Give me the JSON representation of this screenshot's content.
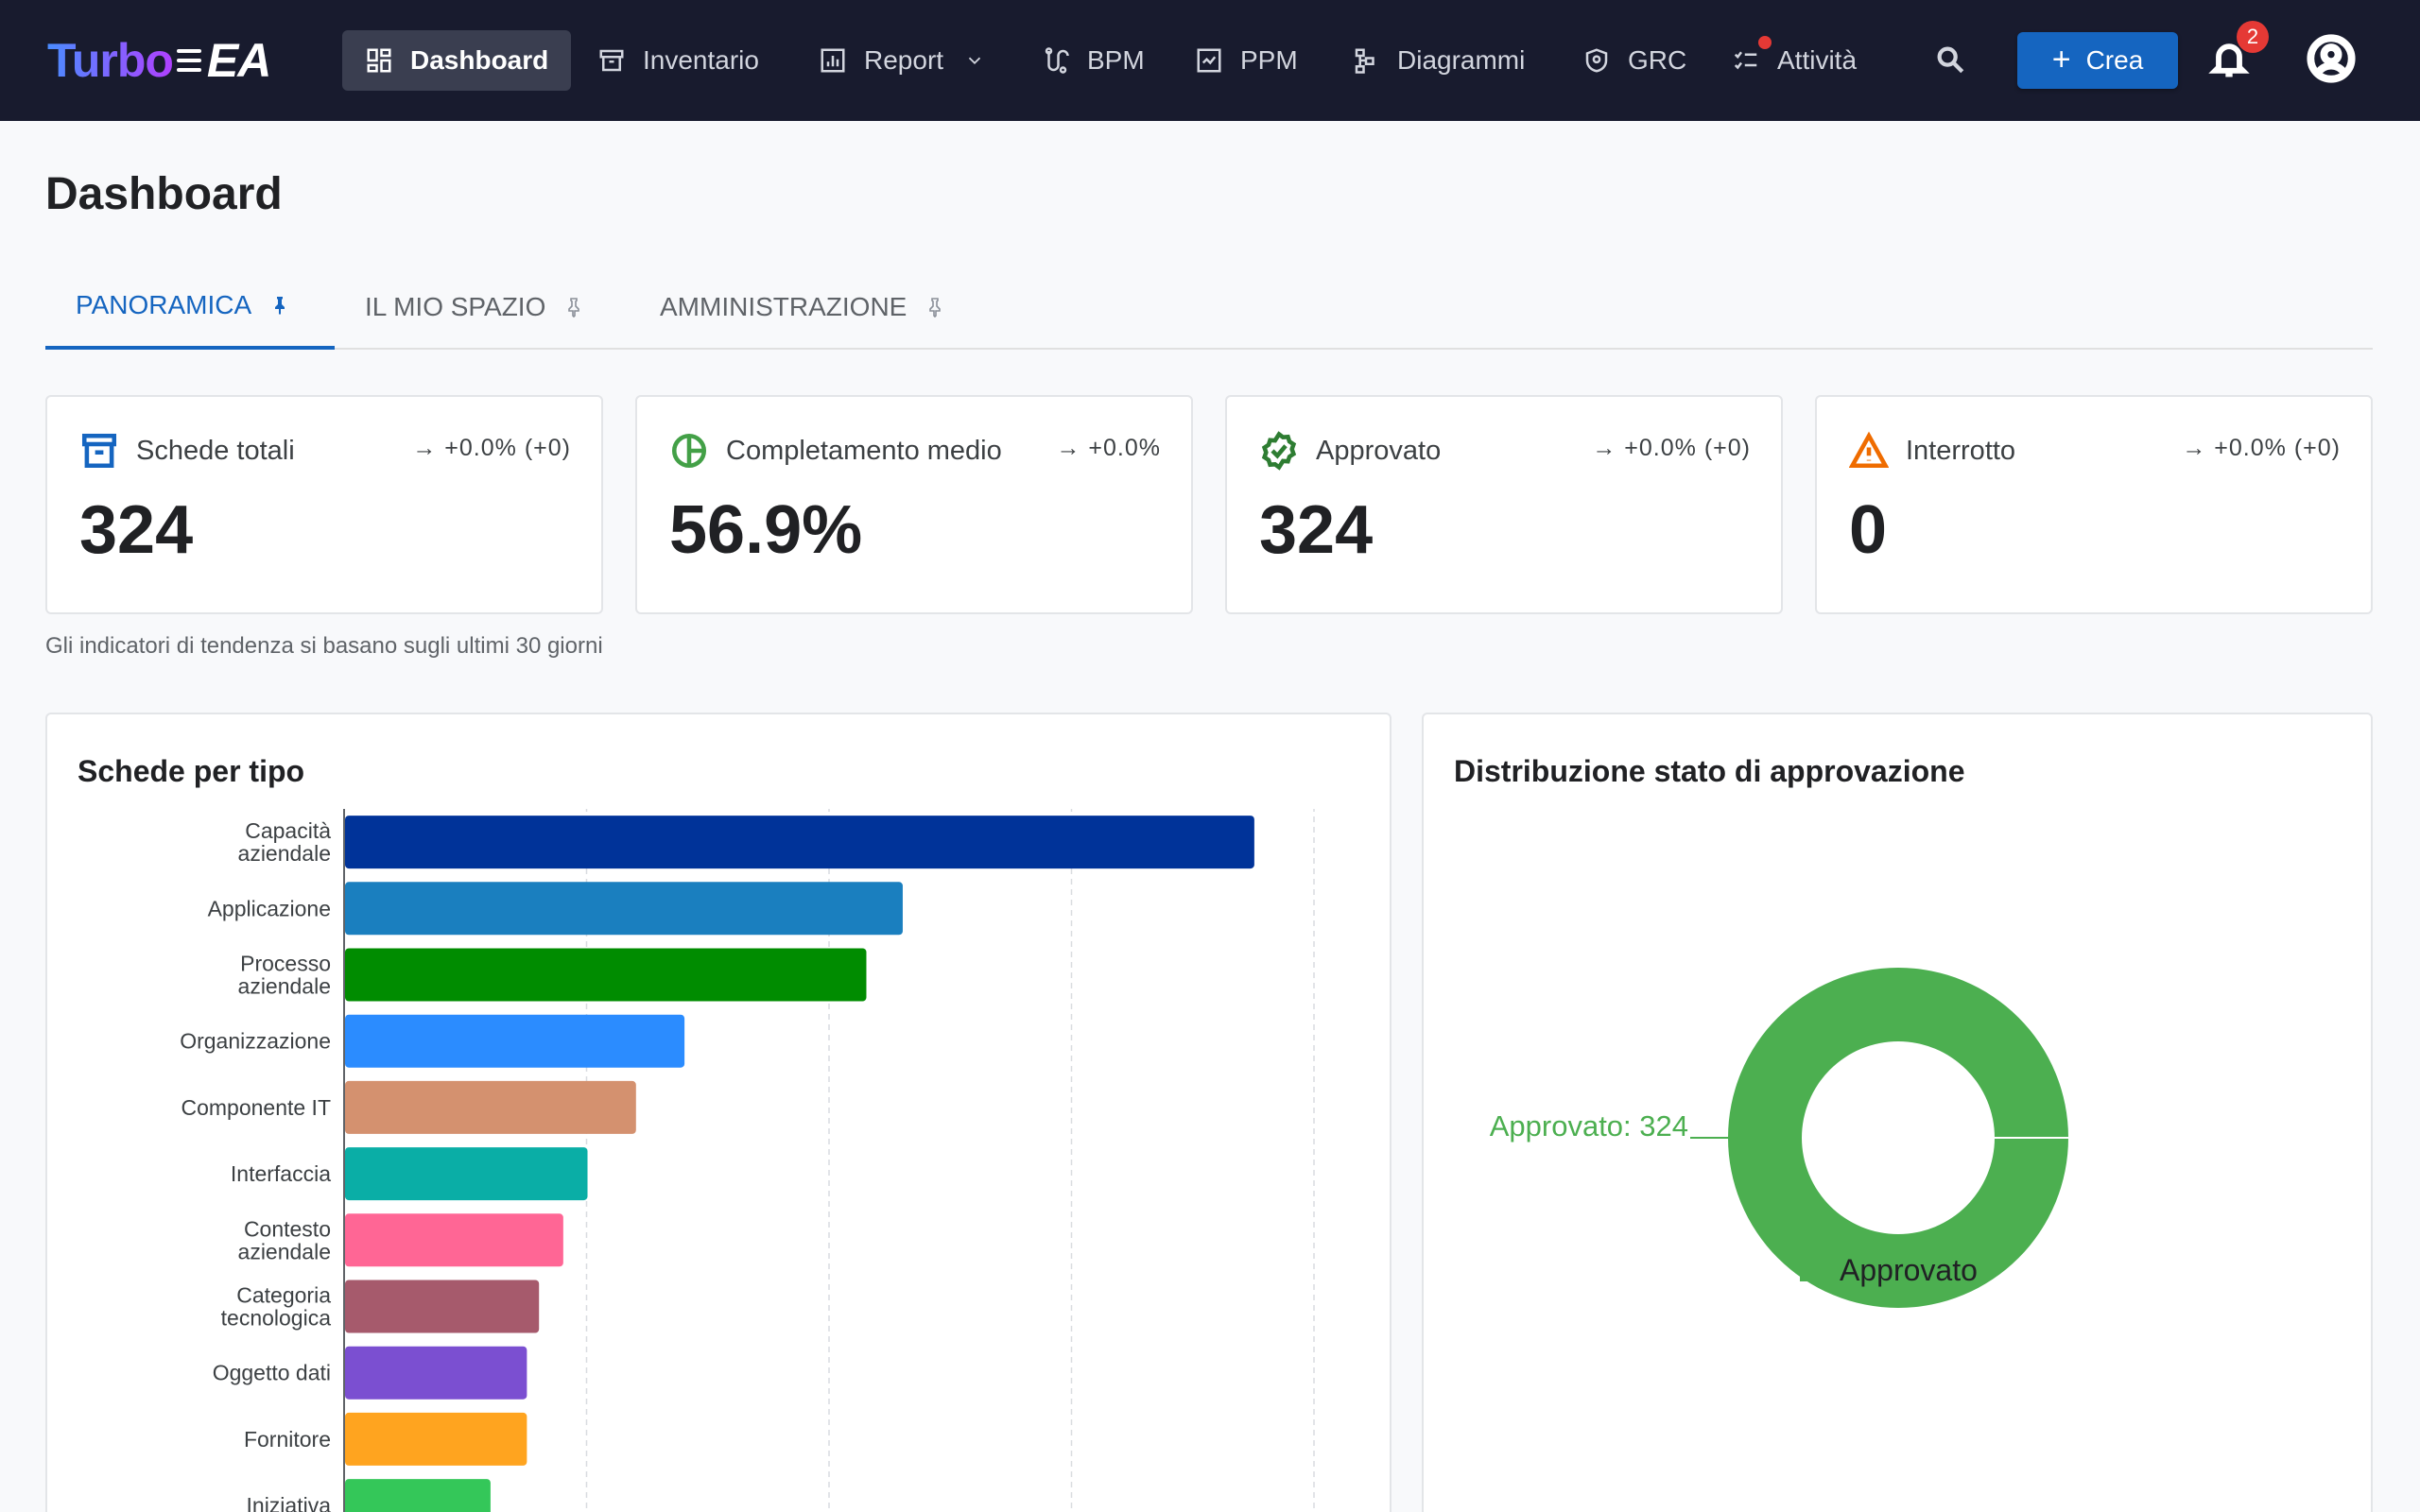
{
  "app": {
    "logo_text": "Turbo",
    "logo_suffix": "EA"
  },
  "nav": {
    "items": [
      {
        "label": "Dashboard",
        "icon": "dashboard-icon",
        "active": true
      },
      {
        "label": "Inventario",
        "icon": "archive-icon"
      },
      {
        "label": "Report",
        "icon": "report-chart-icon",
        "dropdown": true
      },
      {
        "label": "BPM",
        "icon": "bpm-flow-icon"
      },
      {
        "label": "PPM",
        "icon": "ppm-board-icon"
      },
      {
        "label": "Diagrammi",
        "icon": "diagram-icon"
      },
      {
        "label": "GRC",
        "icon": "shield-icon"
      },
      {
        "label": "Attività",
        "icon": "task-checklist-icon",
        "indicator": true
      }
    ],
    "create_label": "Crea",
    "notifications_count": "2"
  },
  "page": {
    "title": "Dashboard"
  },
  "tabs": [
    {
      "label": "PANORAMICA",
      "active": true,
      "pinned": true
    },
    {
      "label": "IL MIO SPAZIO",
      "pinned": false
    },
    {
      "label": "AMMINISTRAZIONE",
      "pinned": false
    }
  ],
  "kpis": [
    {
      "label": "Schede totali",
      "value": "324",
      "trend": "→ +0.0% (+0)",
      "icon": "archive-icon",
      "color": "#1565c0"
    },
    {
      "label": "Completamento medio",
      "value": "56.9%",
      "trend": "→ +0.0%",
      "icon": "pie-progress-icon",
      "color": "#43a047"
    },
    {
      "label": "Approvato",
      "value": "324",
      "trend": "→ +0.0% (+0)",
      "icon": "verified-badge-icon",
      "color": "#2e7d32"
    },
    {
      "label": "Interrotto",
      "value": "0",
      "trend": "→ +0.0% (+0)",
      "icon": "warning-icon",
      "color": "#ef6c00"
    }
  ],
  "trend_note": "Gli indicatori di tendenza si basano sugli ultimi 30 giorni",
  "charts": {
    "bar_title": "Schede per tipo",
    "donut_title": "Distribuzione stato di approvazione"
  },
  "chart_data": [
    {
      "type": "bar",
      "orientation": "horizontal",
      "title": "Schede per tipo",
      "categories": [
        "Capacità aziendale",
        "Applicazione",
        "Processo aziendale",
        "Organizzazione",
        "Componente IT",
        "Interfaccia",
        "Contesto aziendale",
        "Categoria tecnologica",
        "Oggetto dati",
        "Fornitore",
        "Iniziativa"
      ],
      "values": [
        75,
        46,
        43,
        28,
        24,
        20,
        18,
        16,
        15,
        15,
        12
      ],
      "colors": [
        "#003399",
        "#1a7fbf",
        "#008c00",
        "#2b8cff",
        "#d4916f",
        "#0aaea6",
        "#ff6695",
        "#a65a6c",
        "#7b4fd1",
        "#ffa41f",
        "#34c759"
      ],
      "xlim": [
        0,
        80
      ],
      "grid": true
    },
    {
      "type": "pie",
      "variant": "donut",
      "title": "Distribuzione stato di approvazione",
      "labels": [
        "Approvato"
      ],
      "values": [
        324
      ],
      "colors": [
        "#4caf50"
      ],
      "data_labels": [
        "Approvato: 324"
      ],
      "legend_position": "bottom"
    }
  ]
}
